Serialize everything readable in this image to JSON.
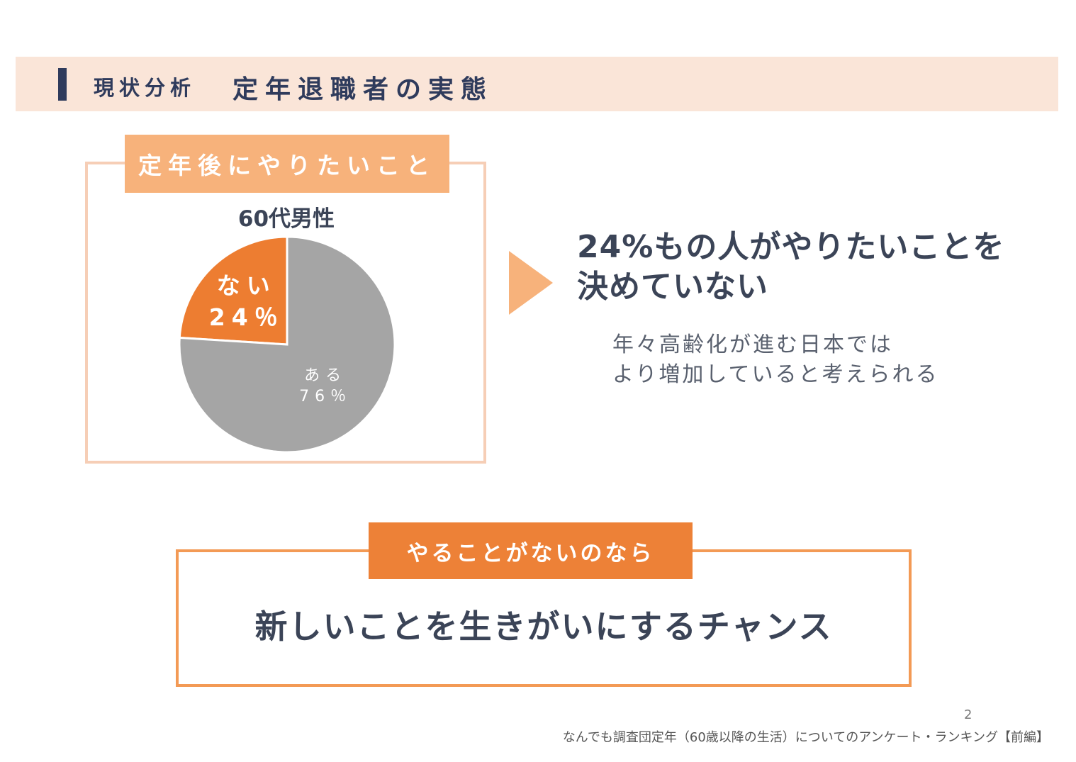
{
  "header": {
    "section": "現状分析",
    "title": "定年退職者の実態"
  },
  "chart_block": {
    "tag": "定年後にやりたいこと",
    "chart_title": "60代男性"
  },
  "chart_data": {
    "type": "pie",
    "title": "60代男性",
    "slices": [
      {
        "label": "ない",
        "value": 24,
        "value_label": "24％",
        "color": "#ed7d31"
      },
      {
        "label": "ある",
        "value": 76,
        "value_label": "76％",
        "color": "#a5a5a5"
      }
    ]
  },
  "message": {
    "line1": "24%もの人がやりたいことを",
    "line2": "決めていない",
    "sub1": "年々高齢化が進む日本では",
    "sub2": "より増加していると考えられる"
  },
  "bottom_block": {
    "tag": "やることがないのなら",
    "main": "新しいことを生きがいにするチャンス"
  },
  "page_number": "2",
  "footer": "なんでも調査団定年（60歳以降の生活）についてのアンケート・ランキング【前編】",
  "colors": {
    "navy": "#2f3b5c",
    "orange": "#ed8137",
    "light_orange": "#f7b27b",
    "peach": "#fae5d8",
    "gray": "#a5a5a5"
  }
}
